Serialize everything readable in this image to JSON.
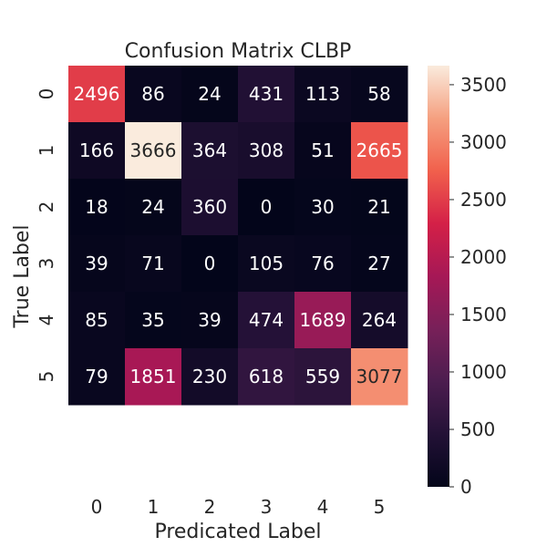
{
  "chart_data": {
    "type": "heatmap",
    "title": "Confusion Matrix CLBP",
    "xlabel": "Predicated Label",
    "ylabel": "True Label",
    "x_categories": [
      "0",
      "1",
      "2",
      "3",
      "4",
      "5"
    ],
    "y_categories": [
      "0",
      "1",
      "2",
      "3",
      "4",
      "5"
    ],
    "values": [
      [
        2496,
        86,
        24,
        431,
        113,
        58
      ],
      [
        166,
        3666,
        364,
        308,
        51,
        2665
      ],
      [
        18,
        24,
        360,
        0,
        30,
        21
      ],
      [
        39,
        71,
        0,
        105,
        76,
        27
      ],
      [
        85,
        35,
        39,
        474,
        1689,
        264
      ],
      [
        79,
        1851,
        230,
        618,
        559,
        3077
      ]
    ],
    "colorbar": {
      "min": 0,
      "max": 3666,
      "ticks": [
        0,
        500,
        1000,
        1500,
        2000,
        2500,
        3000,
        3500
      ],
      "colormap": "rocket"
    }
  }
}
